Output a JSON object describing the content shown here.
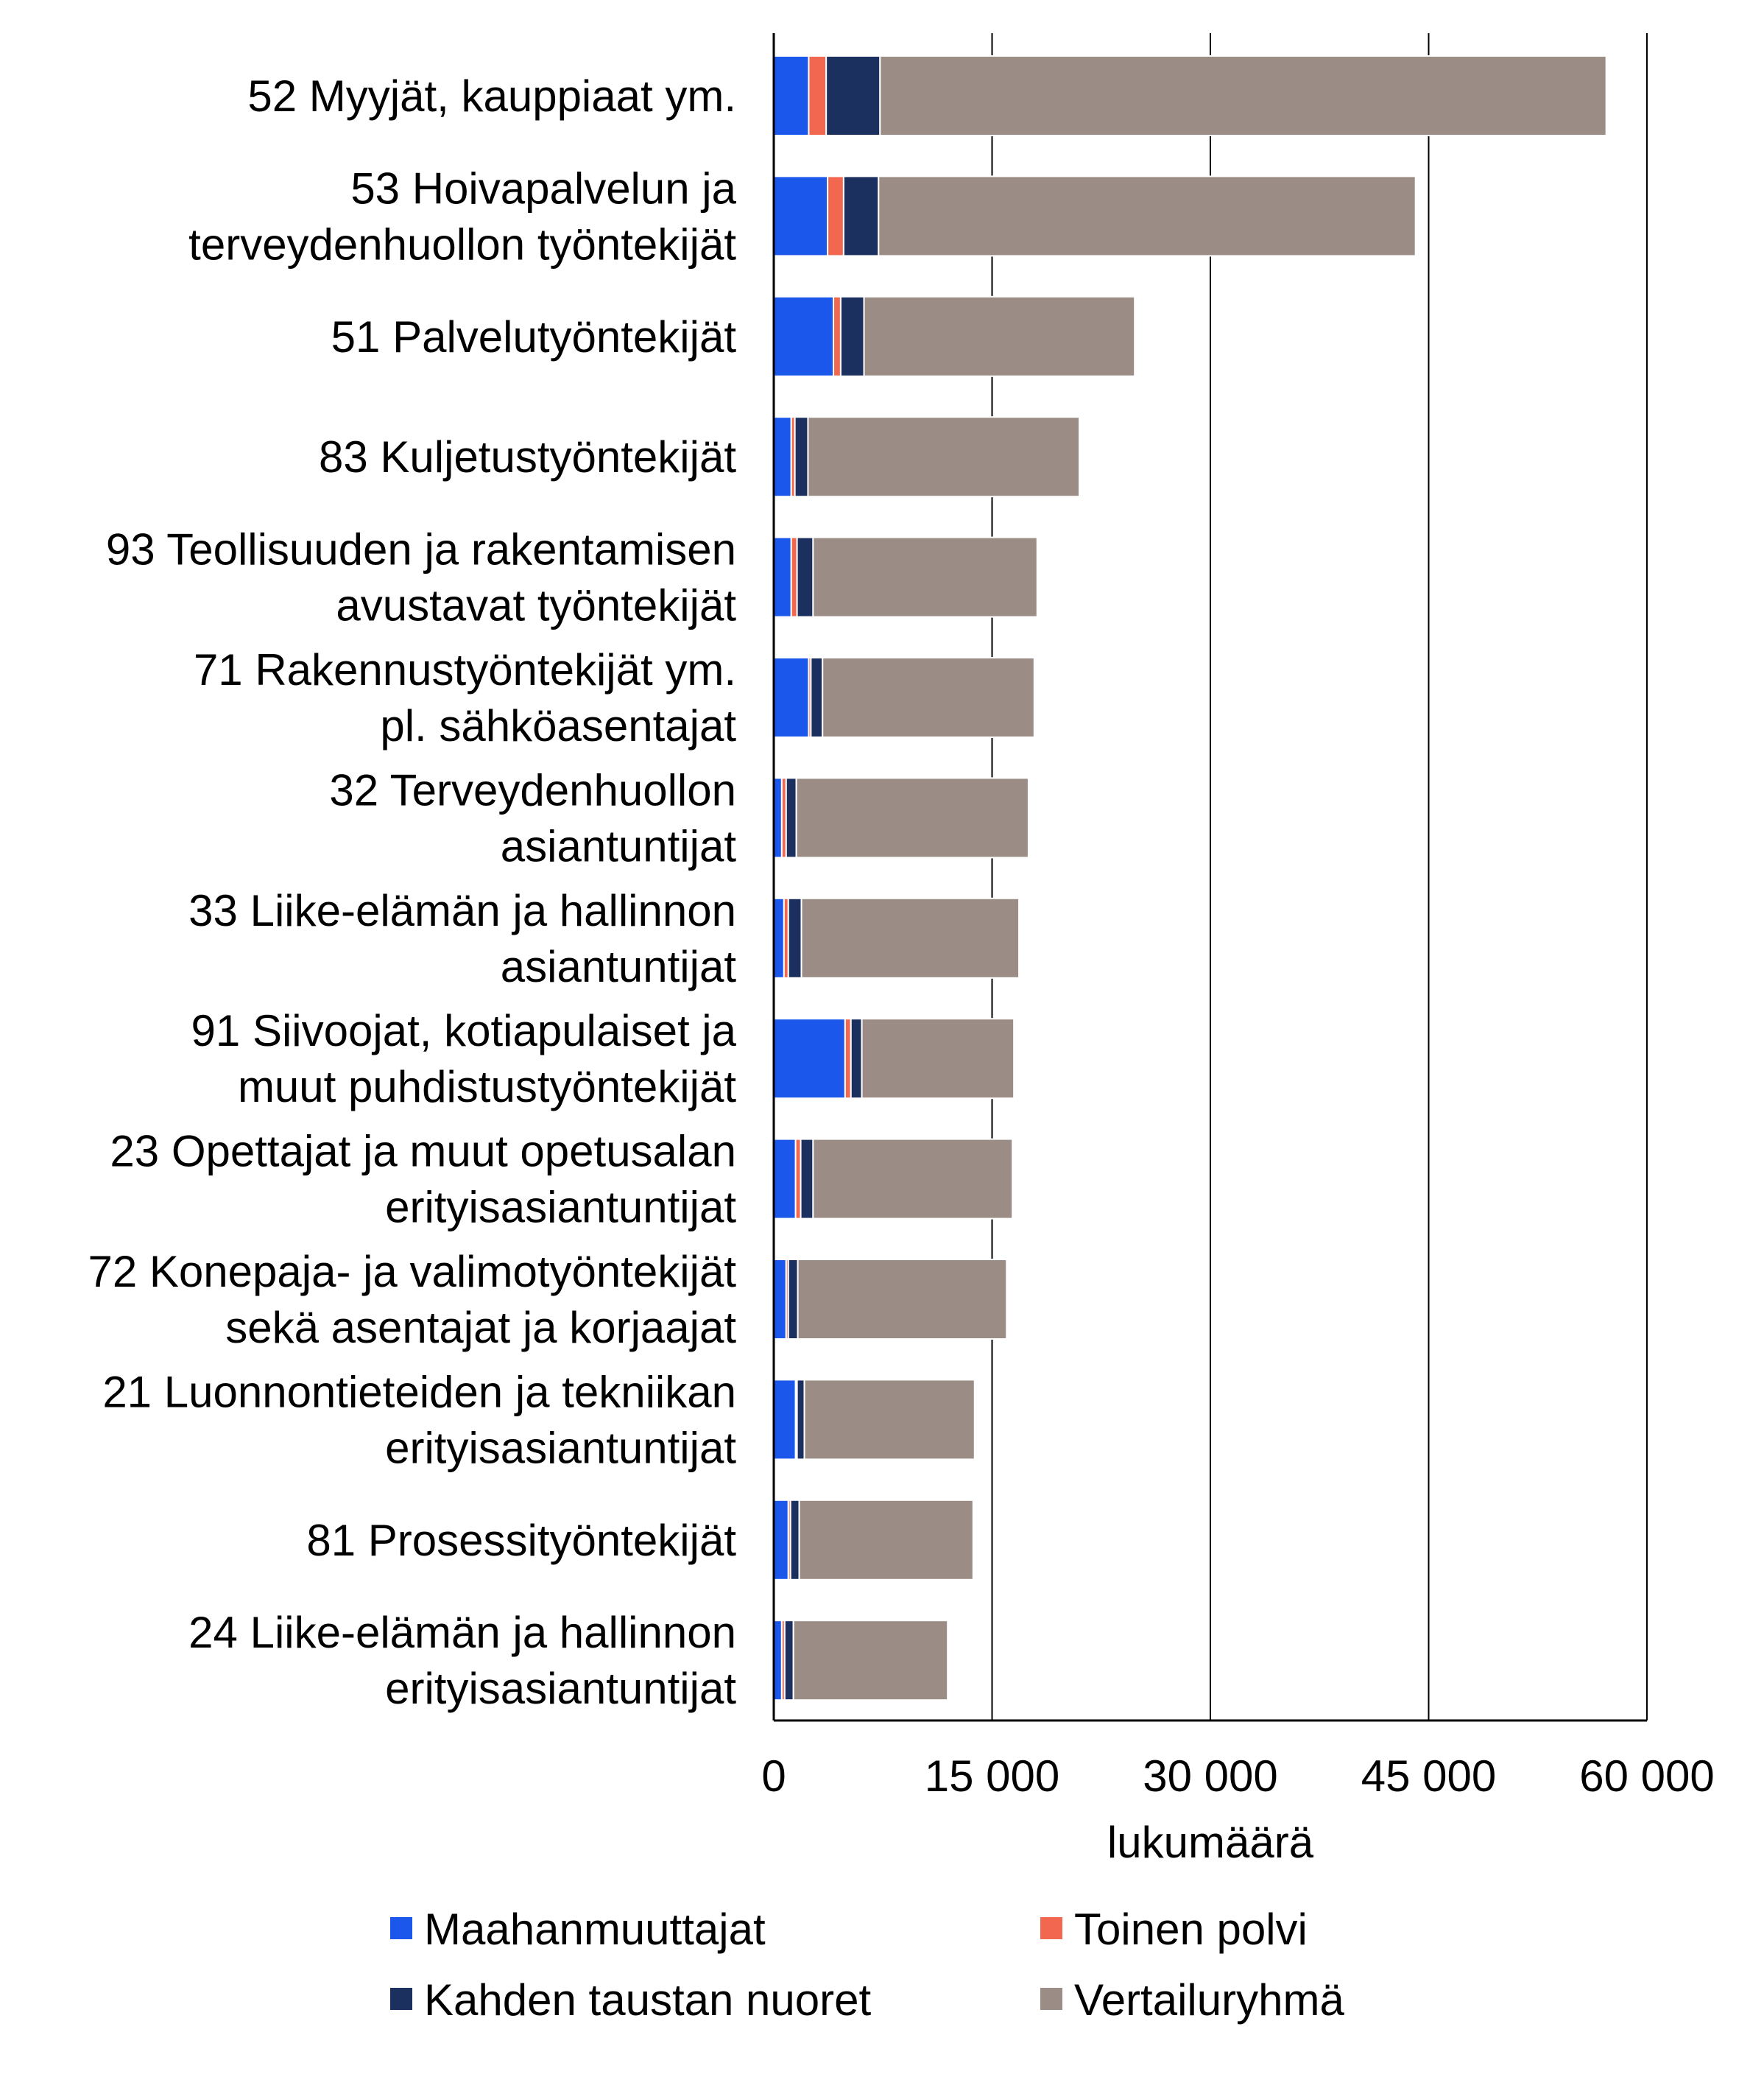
{
  "chart_data": {
    "type": "bar",
    "orientation": "horizontal",
    "stacked": true,
    "title": "",
    "xlabel": "lukumäärä",
    "ylabel": "",
    "xlim": [
      0,
      60000
    ],
    "xticks": [
      0,
      15000,
      30000,
      45000,
      60000
    ],
    "xtick_labels": [
      "0",
      "15 000",
      "30 000",
      "45 000",
      "60 000"
    ],
    "grid": true,
    "legend_position": "bottom",
    "categories": [
      [
        "52 Myyjät, kauppiaat ym."
      ],
      [
        "53 Hoivapalvelun ja",
        "terveydenhuollon työntekijät"
      ],
      [
        "51 Palvelutyöntekijät"
      ],
      [
        "83 Kuljetustyöntekijät"
      ],
      [
        "93 Teollisuuden ja rakentamisen",
        "avustavat työntekijät"
      ],
      [
        "71 Rakennustyöntekijät ym.",
        "pl. sähköasentajat"
      ],
      [
        "32 Terveydenhuollon",
        "asiantuntijat"
      ],
      [
        "33 Liike-elämän ja hallinnon",
        "asiantuntijat"
      ],
      [
        "91 Siivoojat, kotiapulaiset ja",
        "muut puhdistustyöntekijät"
      ],
      [
        "23 Opettajat ja muut opetusalan",
        "erityisasiantuntijat"
      ],
      [
        "72 Konepaja- ja valimotyöntekijät",
        "sekä asentajat ja korjaajat"
      ],
      [
        "21 Luonnontieteiden ja tekniikan",
        "erityisasiantuntijat"
      ],
      [
        "81 Prosessityöntekijät"
      ],
      [
        "24 Liike-elämän ja hallinnon",
        "erityisasiantuntijat"
      ]
    ],
    "series": [
      {
        "name": "Maahanmuuttajat",
        "color": "#1b57eb",
        "values": [
          2400,
          3700,
          4100,
          1200,
          1200,
          2400,
          550,
          700,
          4900,
          1500,
          850,
          1500,
          1000,
          550
        ]
      },
      {
        "name": "Toinen polvi",
        "color": "#f2674f",
        "values": [
          1200,
          1100,
          500,
          250,
          400,
          150,
          300,
          300,
          400,
          350,
          150,
          100,
          150,
          200
        ]
      },
      {
        "name": "Kahden taustan nuoret",
        "color": "#1b305e",
        "values": [
          3700,
          2400,
          1600,
          900,
          1100,
          800,
          700,
          900,
          750,
          850,
          650,
          500,
          600,
          600
        ]
      },
      {
        "name": "Vertailuryhmä",
        "color": "#9b8d86",
        "values": [
          49900,
          36900,
          18600,
          18650,
          15400,
          14550,
          15950,
          14950,
          10450,
          13700,
          14350,
          11700,
          11950,
          10600
        ]
      }
    ]
  }
}
